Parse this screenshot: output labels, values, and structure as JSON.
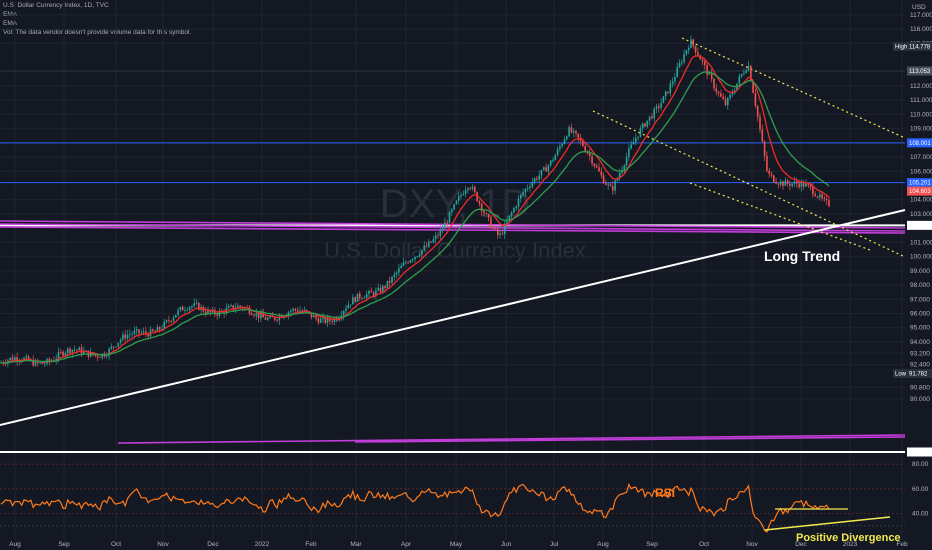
{
  "legend": {
    "symbol": "U.S. Dollar Currency Index, 1D, TVC",
    "ema1": "EMA",
    "ema2": "EMA",
    "volume_note": "Vol: The data vendor doesn't provide volume data for this symbol."
  },
  "watermark": {
    "ticker": "DXY, 1D",
    "name": "U.S. Dollar Currency Index"
  },
  "currency": "USD",
  "annotations": {
    "long_trend": "Long Trend",
    "rsi": "RSI",
    "divergence": "Positive Divergence"
  },
  "colors": {
    "background": "#141823",
    "up": "#26a69a",
    "down": "#ef5350",
    "ema_fast": "#ef2b2b",
    "ema_slow": "#2e9e4f",
    "rsi": "#ff7a1a",
    "trendline": "#ffffff",
    "channel": "#f2e94e",
    "magenta": "#c23dd9",
    "blue_level": "#2962ff"
  },
  "chart_data": [
    {
      "type": "candlestick",
      "title": "U.S. Dollar Currency Index, 1D, TVC",
      "x_tick_labels": [
        "Aug",
        "Sep",
        "Oct",
        "Nov",
        "Dec",
        "2022",
        "Feb",
        "Mar",
        "Apr",
        "May",
        "Jun",
        "Jul",
        "Aug",
        "Sep",
        "Oct",
        "Nov",
        "Dec",
        "2023",
        "Feb"
      ],
      "y_tick_labels": [
        "117.000",
        "116.000",
        "115.000",
        "112.000",
        "111.000",
        "110.000",
        "109.000",
        "107.000",
        "106.000",
        "104.000",
        "103.000",
        "101.000",
        "100.000",
        "99.000",
        "98.000",
        "97.000",
        "96.000",
        "95.000",
        "94.000",
        "93.200",
        "92.400",
        "90.800",
        "90.000"
      ],
      "ylim": [
        85.6,
        117.5
      ],
      "grid": true,
      "series": [
        {
          "values_desc": "price path",
          "x": [
            "2021-08-01",
            "2021-09-30",
            "2021-11-25",
            "2022-01-01",
            "2022-02-20",
            "2022-04-10",
            "2022-05-13",
            "2022-06-01",
            "2022-07-14",
            "2022-08-10",
            "2022-09-28",
            "2022-10-20",
            "2022-11-03",
            "2022-11-15",
            "2022-12-20"
          ],
          "y": [
            92.5,
            93.5,
            96.5,
            96.0,
            95.8,
            99.8,
            104.8,
            101.7,
            108.8,
            105.0,
            114.8,
            111.0,
            113.2,
            106.0,
            104.0
          ]
        }
      ],
      "price_labels": [
        {
          "text": "High",
          "value": "114.778"
        },
        {
          "text": "",
          "value": "113.053"
        },
        {
          "text": "",
          "value": "108.001"
        },
        {
          "text": "",
          "value": "105.201"
        },
        {
          "text": "",
          "value": "104.603"
        },
        {
          "text": "",
          "value": "102.197"
        },
        {
          "text": "Low",
          "value": "91.782"
        },
        {
          "text": "",
          "value": "86.26"
        }
      ],
      "horizontal_levels": [
        113.053,
        108.001,
        105.201,
        102.197,
        86.26
      ]
    },
    {
      "type": "line",
      "title": "RSI",
      "y_tick_labels": [
        "80.00",
        "60.00",
        "40.00"
      ],
      "ylim": [
        22,
        88
      ]
    }
  ]
}
